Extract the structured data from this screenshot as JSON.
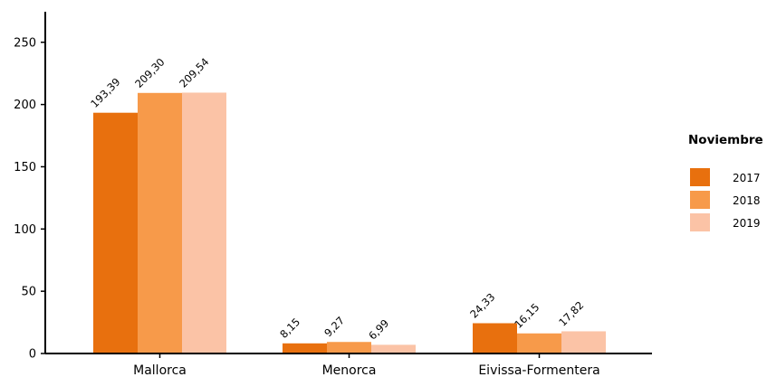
{
  "chart_data": {
    "type": "bar",
    "categories": [
      "Mallorca",
      "Menorca",
      "Eivissa-Formentera"
    ],
    "series": [
      {
        "name": "2017",
        "values": [
          193.39,
          8.15,
          24.33
        ],
        "labels": [
          "193,39",
          "8,15",
          "24,33"
        ],
        "color": "#E8700E"
      },
      {
        "name": "2018",
        "values": [
          209.3,
          9.27,
          16.15
        ],
        "labels": [
          "209,30",
          "9,27",
          "16,15"
        ],
        "color": "#F79A4A"
      },
      {
        "name": "2019",
        "values": [
          209.54,
          6.99,
          17.82
        ],
        "labels": [
          "209,54",
          "6,99",
          "17,82"
        ],
        "color": "#FBC3A6"
      }
    ],
    "title": "",
    "xlabel": "",
    "ylabel": "",
    "ylim": [
      0,
      275
    ],
    "yticks": [
      0,
      50,
      100,
      150,
      200,
      250
    ],
    "grid": false,
    "legend": {
      "title": "Noviembre",
      "placement": "right"
    }
  }
}
